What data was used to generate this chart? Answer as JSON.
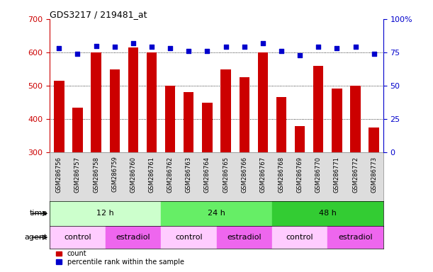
{
  "title": "GDS3217 / 219481_at",
  "samples": [
    "GSM286756",
    "GSM286757",
    "GSM286758",
    "GSM286759",
    "GSM286760",
    "GSM286761",
    "GSM286762",
    "GSM286763",
    "GSM286764",
    "GSM286765",
    "GSM286766",
    "GSM286767",
    "GSM286768",
    "GSM286769",
    "GSM286770",
    "GSM286771",
    "GSM286772",
    "GSM286773"
  ],
  "counts": [
    515,
    435,
    600,
    548,
    615,
    600,
    500,
    480,
    448,
    548,
    525,
    600,
    465,
    378,
    560,
    492,
    500,
    375
  ],
  "percentile_ranks": [
    78,
    74,
    80,
    79,
    82,
    79,
    78,
    76,
    76,
    79,
    79,
    82,
    76,
    73,
    79,
    78,
    79,
    74
  ],
  "ylim_left": [
    300,
    700
  ],
  "ylim_right": [
    0,
    100
  ],
  "yticks_left": [
    300,
    400,
    500,
    600,
    700
  ],
  "yticks_right": [
    0,
    25,
    50,
    75,
    100
  ],
  "bar_color": "#cc0000",
  "dot_color": "#0000cc",
  "time_groups": [
    {
      "label": "12 h",
      "start": 0,
      "end": 6,
      "color": "#ccffcc"
    },
    {
      "label": "24 h",
      "start": 6,
      "end": 12,
      "color": "#66ee66"
    },
    {
      "label": "48 h",
      "start": 12,
      "end": 18,
      "color": "#33cc33"
    }
  ],
  "agent_groups": [
    {
      "label": "control",
      "start": 0,
      "end": 3,
      "color": "#ffccff"
    },
    {
      "label": "estradiol",
      "start": 3,
      "end": 6,
      "color": "#ee66ee"
    },
    {
      "label": "control",
      "start": 6,
      "end": 9,
      "color": "#ffccff"
    },
    {
      "label": "estradiol",
      "start": 9,
      "end": 12,
      "color": "#ee66ee"
    },
    {
      "label": "control",
      "start": 12,
      "end": 15,
      "color": "#ffccff"
    },
    {
      "label": "estradiol",
      "start": 15,
      "end": 18,
      "color": "#ee66ee"
    }
  ],
  "xtick_bg": "#dddddd",
  "legend_count_label": "count",
  "legend_percentile_label": "percentile rank within the sample",
  "time_label": "time",
  "agent_label": "agent",
  "bar_width": 0.55
}
